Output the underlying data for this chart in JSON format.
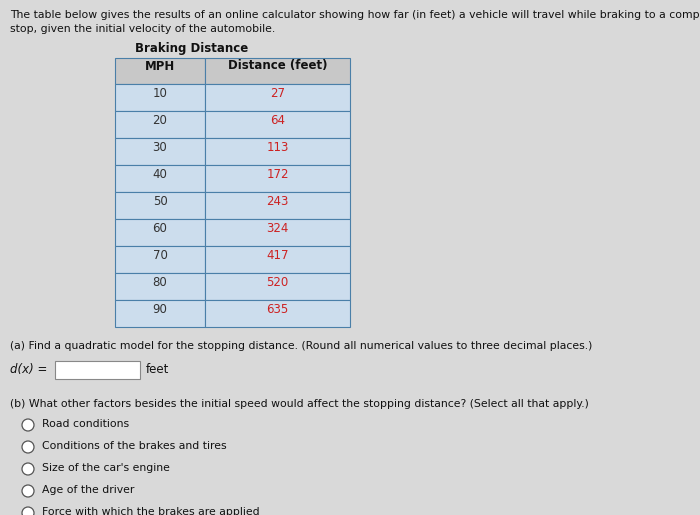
{
  "title_line1": "The table below gives the results of an online calculator showing how far (in feet) a vehicle will travel while braking to a complete",
  "title_line2": "stop, given the initial velocity of the automobile.",
  "table_title": "Braking Distance",
  "col_headers": [
    "MPH",
    "Distance (feet)"
  ],
  "mph_values": [
    10,
    20,
    30,
    40,
    50,
    60,
    70,
    80,
    90
  ],
  "distance_values": [
    27,
    64,
    113,
    172,
    243,
    324,
    417,
    520,
    635
  ],
  "question_a": "(a) Find a quadratic model for the stopping distance. (Round all numerical values to three decimal places.)",
  "dx_label": "d(x) =",
  "feet_label": "feet",
  "question_b": "(b) What other factors besides the initial speed would affect the stopping distance? (Select all that apply.)",
  "options": [
    "Road conditions",
    "Conditions of the brakes and tires",
    "Size of the car's engine",
    "Age of the driver",
    "Force with which the brakes are applied"
  ],
  "bg_color": "#d9d9d9",
  "table_header_bg": "#c8c8c8",
  "table_row_bg": "#ccdded",
  "table_border_color": "#4a7fa8",
  "mph_text_color": "#333333",
  "distance_text_color": "#cc2222",
  "header_text_color": "#111111",
  "body_text_color": "#111111"
}
